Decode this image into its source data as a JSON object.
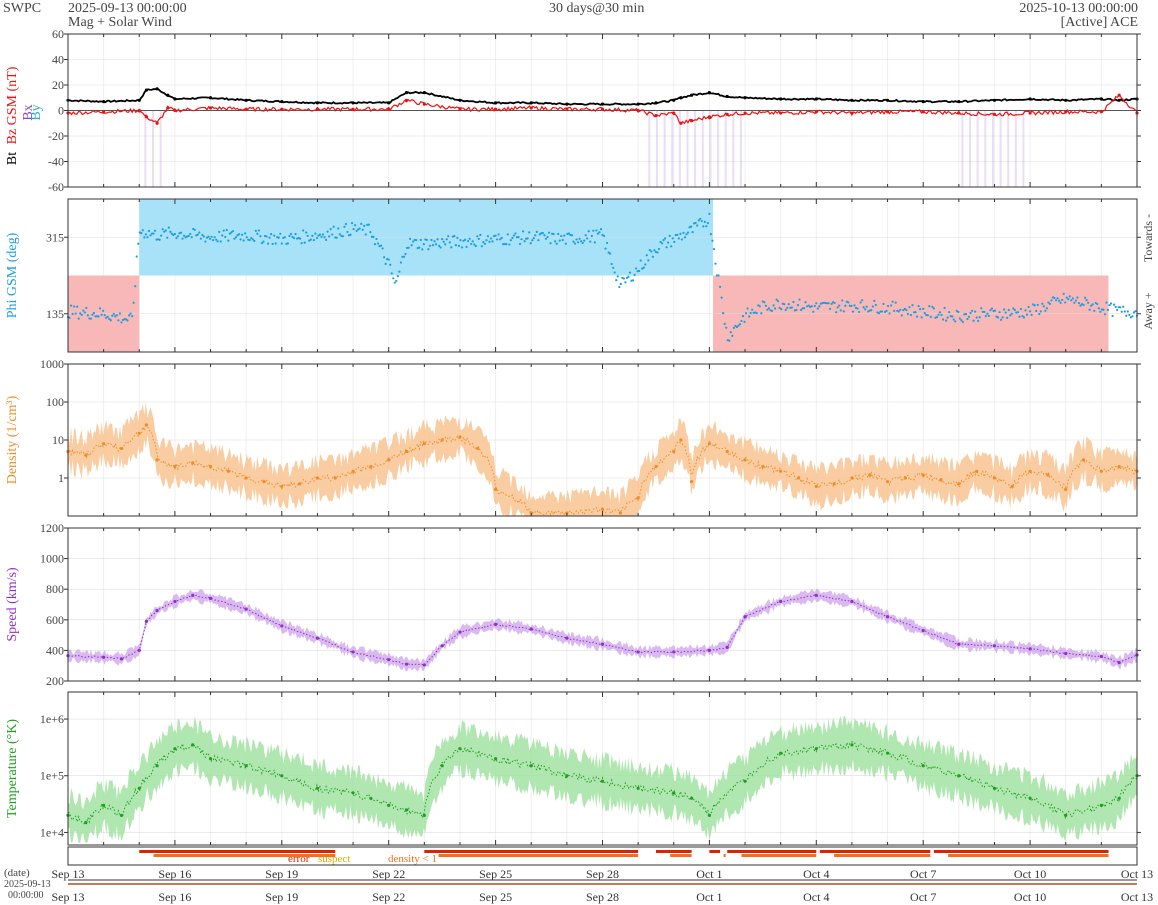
{
  "header": {
    "brand": "SWPC",
    "start": "2025-09-13 00:00:00",
    "subtitle": "Mag + Solar Wind",
    "span": "30 days@30 min",
    "end": "2025-10-13 00:00:00",
    "source": "[Active] ACE"
  },
  "colors": {
    "bt": "#000000",
    "bz": "#ee1111",
    "bx": "#8844cc",
    "by": "#22aadd",
    "phi": "#1a9ee0",
    "phi_toward": "#a8e2f8",
    "phi_away": "#f8b8b8",
    "density": "#f08c28",
    "density_band": "#f8c08a",
    "speed": "#9030c8",
    "speed_band": "#cfa8ec",
    "temp": "#20a020",
    "temp_band": "#9ce09c",
    "error": "#dd2200",
    "suspect": "#ddaa00",
    "density_flag": "#f07020",
    "grid": "#dddddd"
  },
  "chart_data": [
    {
      "type": "line",
      "name": "mag",
      "labels": [
        "Bt",
        "Bz GSM (nT)",
        "Bx",
        "By"
      ],
      "ylim": [
        -60,
        60
      ],
      "yticks": [
        -60,
        -40,
        -20,
        0,
        20,
        40,
        60
      ],
      "x": [
        0,
        1,
        2,
        2.2,
        2.5,
        2.8,
        3,
        4,
        5,
        6,
        7,
        8,
        9,
        9.5,
        10,
        11,
        12,
        13,
        14,
        15,
        16,
        16.5,
        17,
        17.2,
        17.5,
        18,
        18.5,
        19,
        20,
        21,
        22,
        23,
        24,
        25,
        26,
        27,
        28,
        29,
        29.5,
        30
      ],
      "series": [
        {
          "name": "Bt",
          "values": [
            8,
            7,
            8,
            16,
            17,
            12,
            9,
            10,
            8,
            7,
            6,
            6,
            6,
            14,
            14,
            8,
            6,
            6,
            5,
            5,
            5,
            6,
            8,
            10,
            12,
            14,
            11,
            10,
            9,
            9,
            8,
            8,
            7,
            7,
            8,
            9,
            8,
            9,
            8,
            9
          ]
        },
        {
          "name": "Bz GSM",
          "values": [
            -2,
            -1,
            0,
            -5,
            -10,
            2,
            0,
            2,
            1,
            1,
            1,
            1,
            1,
            8,
            5,
            1,
            1,
            2,
            1,
            1,
            0,
            -4,
            -2,
            -10,
            -8,
            -5,
            -3,
            -2,
            -2,
            -1,
            -2,
            -1,
            -1,
            -2,
            -3,
            -2,
            -1,
            -1,
            12,
            -2
          ]
        }
      ]
    },
    {
      "type": "scatter",
      "name": "phi",
      "ylabel": "Phi GSM (deg)",
      "ylim": [
        45,
        405
      ],
      "yticks": [
        135,
        315
      ],
      "right_labels": [
        "Towards -",
        "Away +"
      ],
      "x": [
        0,
        1,
        1.8,
        2,
        2.5,
        3,
        4,
        5,
        6,
        7,
        8,
        8.5,
        9,
        9.2,
        9.5,
        10,
        11,
        12,
        13,
        14,
        15,
        15.5,
        16,
        16.5,
        17,
        17.5,
        18,
        18.5,
        19,
        19.5,
        20,
        21,
        22,
        23,
        24,
        25,
        26,
        27,
        28,
        29,
        29.5
      ],
      "values": [
        140,
        135,
        120,
        330,
        320,
        325,
        315,
        320,
        310,
        320,
        335,
        330,
        250,
        200,
        300,
        300,
        305,
        310,
        315,
        310,
        320,
        200,
        240,
        290,
        310,
        330,
        360,
        80,
        130,
        150,
        160,
        150,
        155,
        150,
        140,
        130,
        135,
        140,
        170,
        150,
        140
      ],
      "sectors": {
        "labels": [
          "towards",
          "away"
        ],
        "x": [
          0,
          2,
          18.1,
          30
        ],
        "values": [
          "away",
          "towards",
          "away"
        ]
      }
    },
    {
      "type": "line",
      "name": "density",
      "ylabel": "Density (1/cm³)",
      "scale": "log",
      "ylim": [
        0.1,
        1000
      ],
      "yticks": [
        1,
        10,
        100,
        1000
      ],
      "x": [
        0,
        0.5,
        1,
        1.5,
        2,
        2.2,
        2.5,
        3,
        3.5,
        4,
        4.5,
        5,
        5.5,
        6,
        6.5,
        7,
        7.5,
        8,
        8.5,
        9,
        9.5,
        10,
        10.5,
        11,
        11.5,
        12,
        13,
        14,
        15,
        15.5,
        16,
        16.5,
        17,
        17.2,
        17.5,
        18,
        18.5,
        19,
        19.5,
        20,
        20.5,
        21,
        21.5,
        22,
        22.5,
        23,
        23.5,
        24,
        24.5,
        25,
        25.5,
        26,
        26.5,
        27,
        27.5,
        28,
        28.5,
        29,
        29.5,
        30
      ],
      "values": [
        5,
        4,
        8,
        6,
        15,
        25,
        3,
        2,
        2.5,
        2,
        1.5,
        1,
        0.8,
        0.6,
        0.7,
        1,
        1,
        1.5,
        2,
        3,
        5,
        8,
        10,
        12,
        6,
        0.5,
        0.12,
        0.12,
        0.15,
        0.12,
        0.3,
        2,
        5,
        10,
        0.8,
        8,
        5,
        3,
        2,
        1.5,
        1,
        0.6,
        0.7,
        1,
        1.2,
        0.8,
        1,
        1.2,
        0.9,
        0.7,
        1.5,
        1,
        0.6,
        1.5,
        1.2,
        0.5,
        3,
        1.5,
        2,
        1.5
      ]
    },
    {
      "type": "line",
      "name": "speed",
      "ylabel": "Speed (km/s)",
      "ylim": [
        200,
        1200
      ],
      "yticks": [
        200,
        400,
        600,
        800,
        1000,
        1200
      ],
      "x": [
        0,
        1,
        1.5,
        2,
        2.2,
        2.5,
        3,
        3.5,
        4,
        5,
        6,
        7,
        8,
        9,
        9.5,
        10,
        10.5,
        11,
        12,
        13,
        14,
        15,
        16,
        17,
        18,
        18.5,
        19,
        20,
        21,
        22,
        23,
        24,
        25,
        26,
        27,
        28,
        29,
        29.5,
        30
      ],
      "values": [
        365,
        355,
        345,
        400,
        590,
        660,
        720,
        760,
        740,
        670,
        560,
        480,
        390,
        340,
        310,
        305,
        430,
        520,
        570,
        540,
        480,
        440,
        390,
        390,
        400,
        420,
        620,
        720,
        760,
        720,
        620,
        530,
        440,
        430,
        410,
        380,
        360,
        320,
        370
      ]
    },
    {
      "type": "line",
      "name": "temperature",
      "ylabel": "Temperature (°K)",
      "scale": "log",
      "ylim": [
        6000,
        3000000
      ],
      "yticks": [
        10000,
        100000,
        1000000
      ],
      "tick_labels": [
        "1e+4",
        "1e+5",
        "1e+6"
      ],
      "x": [
        0,
        0.5,
        1,
        1.5,
        2,
        2.5,
        3,
        3.5,
        4,
        5,
        6,
        7,
        8,
        8.5,
        9,
        9.5,
        10,
        10.5,
        11,
        12,
        13,
        14,
        15,
        16,
        17,
        17.5,
        18,
        19,
        20,
        21,
        22,
        23,
        24,
        25,
        26,
        27,
        28,
        29,
        29.5,
        30
      ],
      "values": [
        20000,
        15000,
        30000,
        20000,
        60000,
        150000,
        300000,
        350000,
        200000,
        150000,
        100000,
        60000,
        50000,
        40000,
        30000,
        25000,
        20000,
        150000,
        300000,
        200000,
        150000,
        100000,
        80000,
        60000,
        50000,
        40000,
        20000,
        80000,
        250000,
        300000,
        350000,
        250000,
        150000,
        100000,
        60000,
        40000,
        20000,
        30000,
        40000,
        100000
      ]
    },
    {
      "type": "heatmap",
      "name": "quality-flags",
      "labels": [
        "error",
        "suspect",
        "density < 1"
      ]
    }
  ],
  "time_axis": {
    "ticks": [
      "Sep 13",
      "Sep 16",
      "Sep 19",
      "Sep 22",
      "Sep 25",
      "Sep 28",
      "Oct 1",
      "Oct 4",
      "Oct 7",
      "Oct 10",
      "Oct 13"
    ],
    "days": [
      0,
      3,
      6,
      9,
      12,
      15,
      18,
      21,
      24,
      27,
      30
    ],
    "date_label": "(date)",
    "origin_date": "2025-09-13",
    "origin_time": "00:00:00"
  }
}
